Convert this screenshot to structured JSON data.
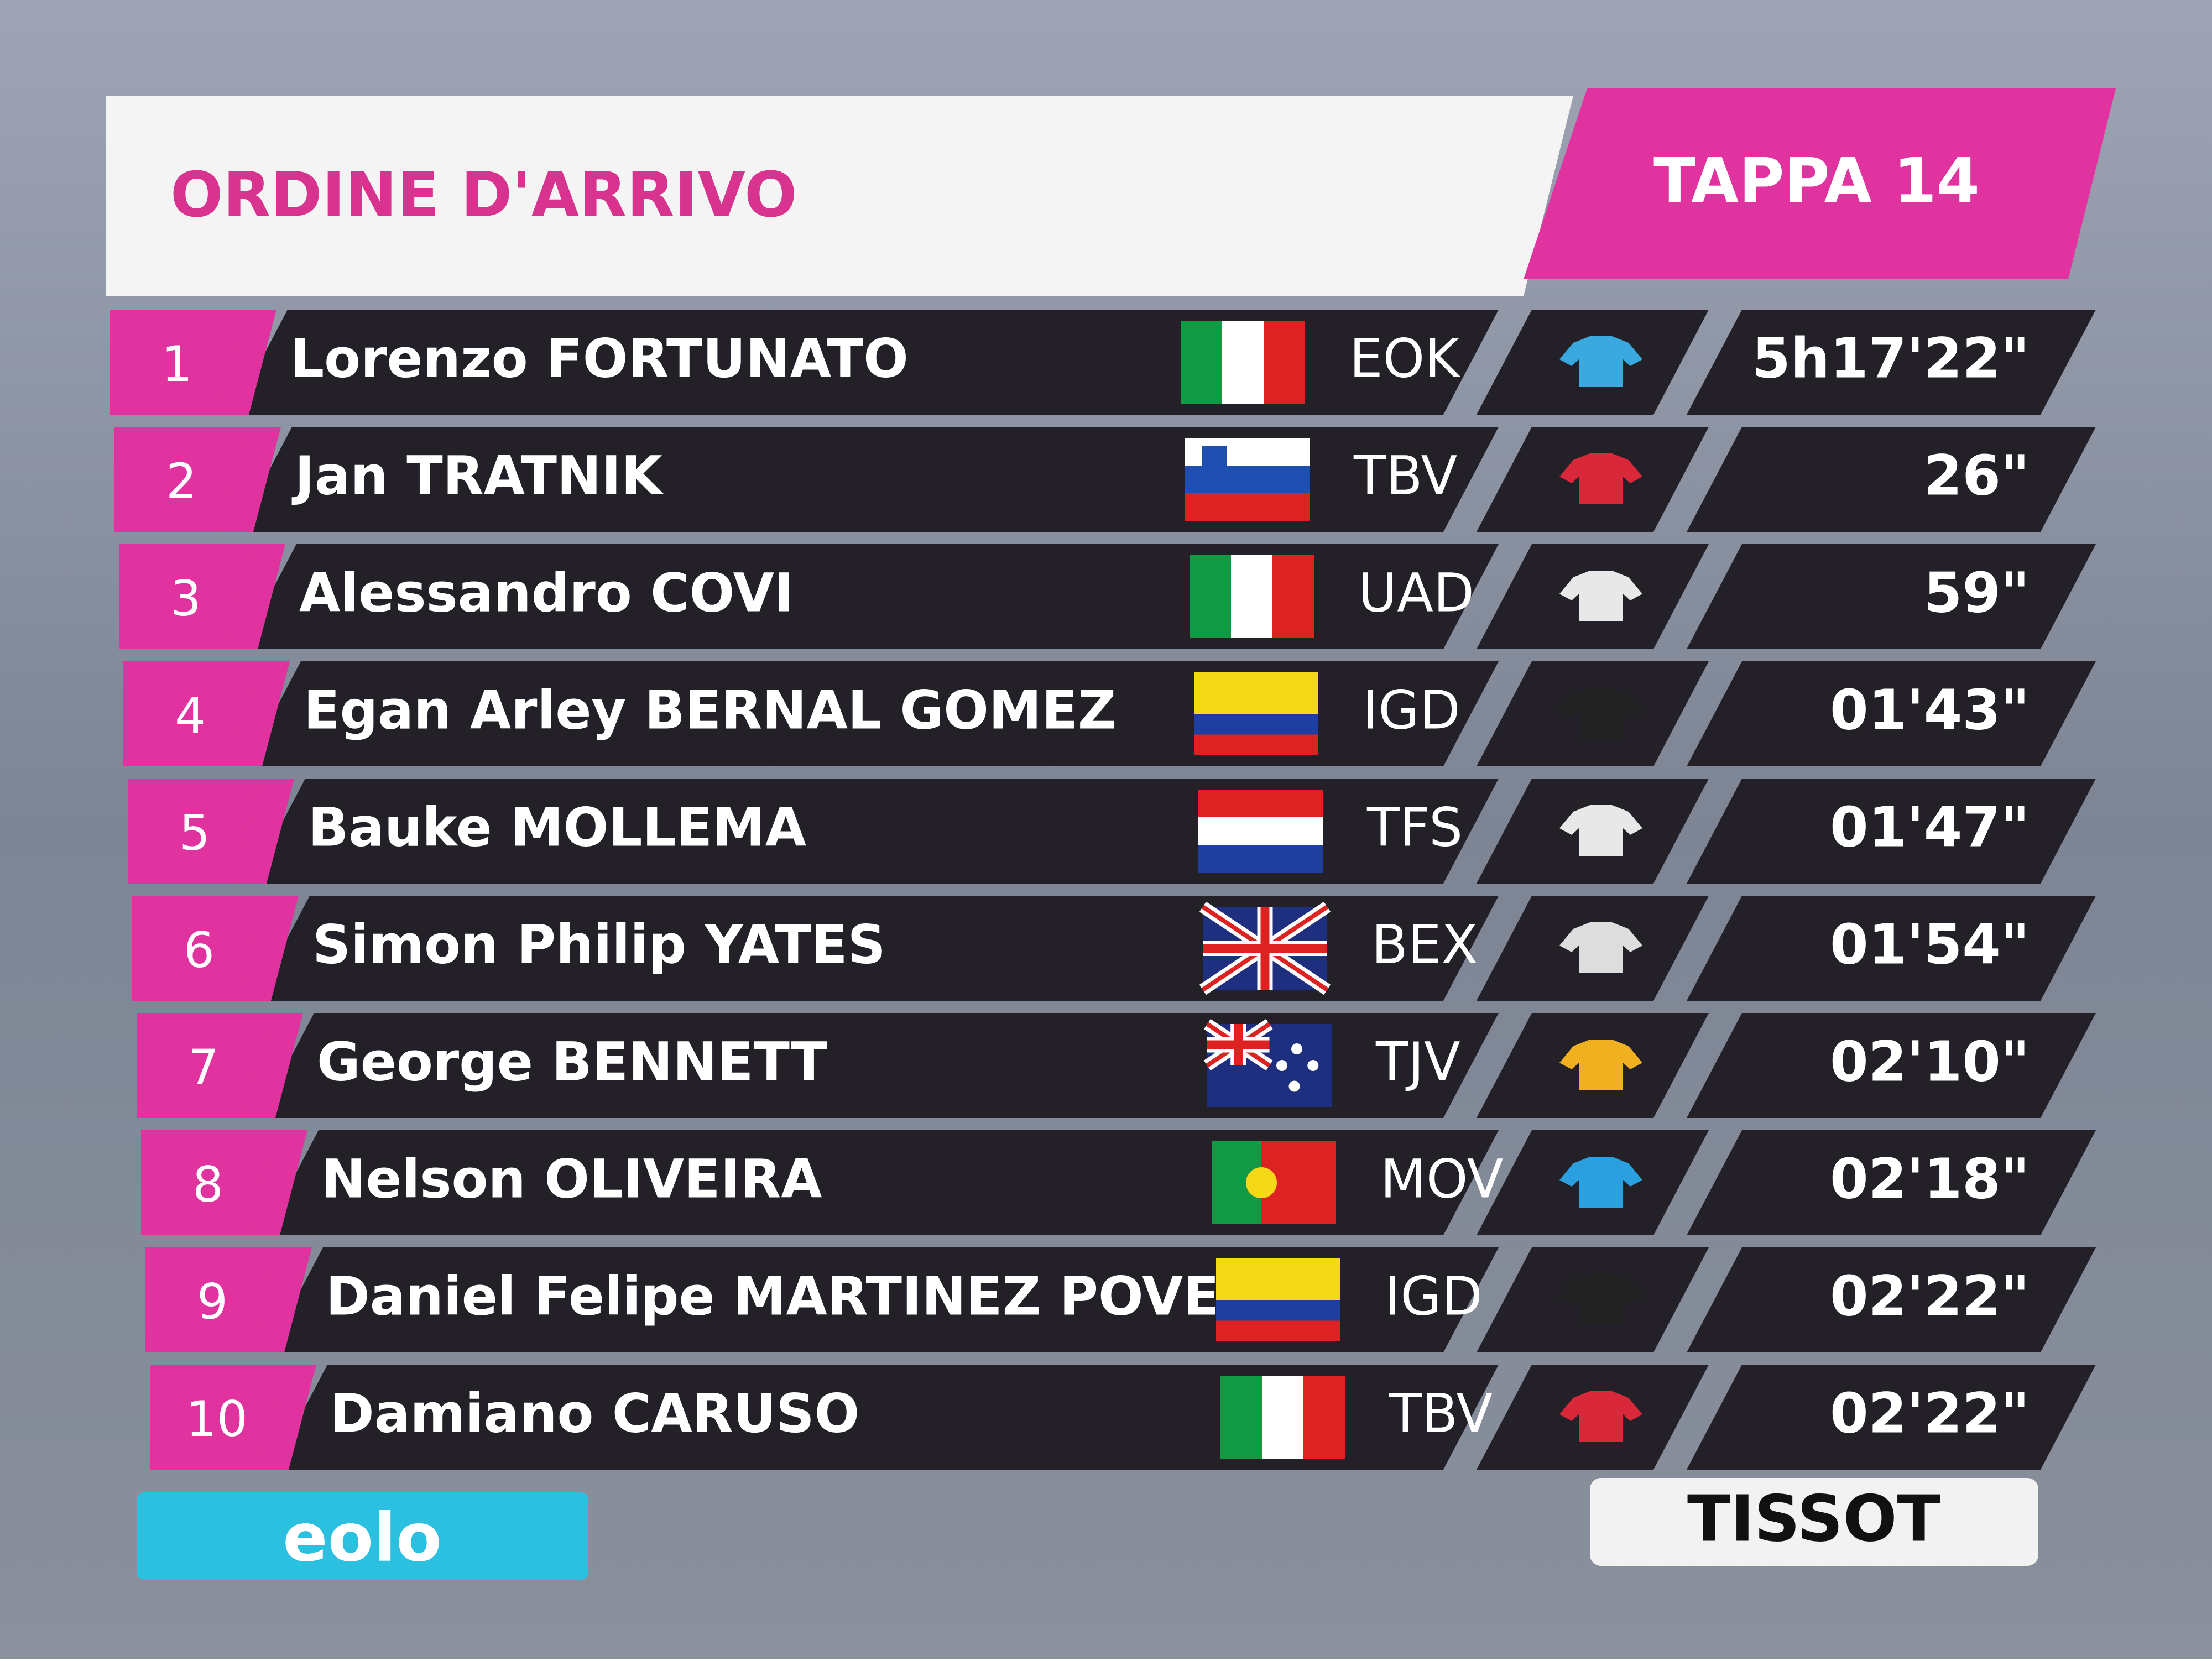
{
  "header": {
    "title": "ORDINE D'ARRIVO",
    "stage": "TAPPA 14"
  },
  "results": {
    "rows": [
      {
        "rank": 1,
        "name": "Lorenzo FORTUNATO",
        "team": "EOK",
        "time": "5h17'22\""
      },
      {
        "rank": 2,
        "name": "Jan TRATNIK",
        "team": "TBV",
        "time": "26\""
      },
      {
        "rank": 3,
        "name": "Alessandro COVI",
        "team": "UAD",
        "time": "59\""
      },
      {
        "rank": 4,
        "name": "Egan Arley BERNAL GOMEZ",
        "team": "IGD",
        "time": "01'43\""
      },
      {
        "rank": 5,
        "name": "Bauke MOLLEMA",
        "team": "TFS",
        "time": "01'47\""
      },
      {
        "rank": 6,
        "name": "Simon Philip YATES",
        "team": "BEX",
        "time": "01'54\""
      },
      {
        "rank": 7,
        "name": "George BENNETT",
        "team": "TJV",
        "time": "02'10\""
      },
      {
        "rank": 8,
        "name": "Nelson OLIVEIRA",
        "team": "MOV",
        "time": "02'18\""
      },
      {
        "rank": 9,
        "name": "Daniel Felipe MARTINEZ POVEDA",
        "team": "IGD",
        "time": "02'22\""
      },
      {
        "rank": 10,
        "name": "Damiano CARUSO",
        "team": "TBV",
        "time": "02'22\""
      }
    ]
  },
  "footer": {
    "left_logo": "eolo",
    "right_logo": "TISSOT"
  }
}
